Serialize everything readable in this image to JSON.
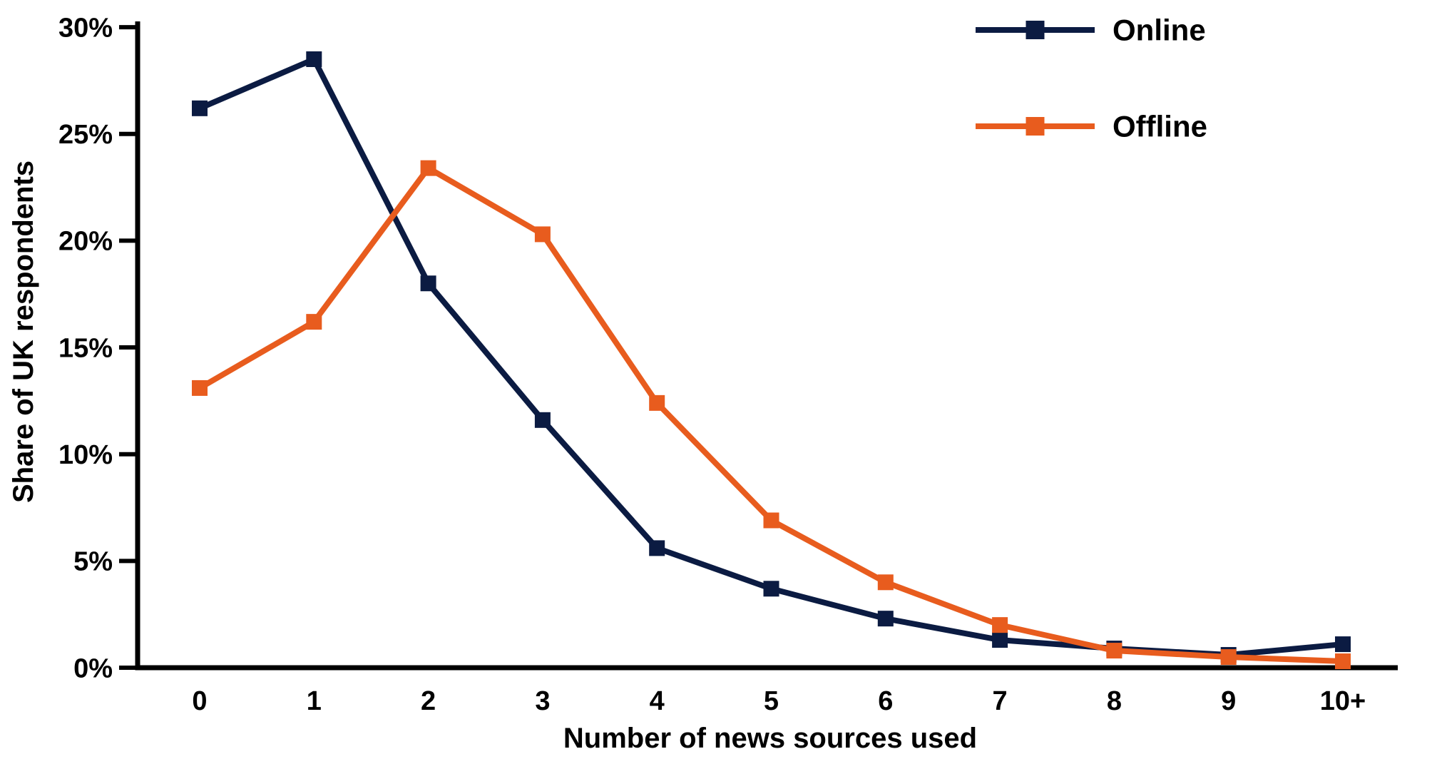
{
  "chart_data": {
    "type": "line",
    "title": "",
    "categories": [
      "0",
      "1",
      "2",
      "3",
      "4",
      "5",
      "6",
      "7",
      "8",
      "9",
      "10+"
    ],
    "series": [
      {
        "name": "Online",
        "color": "#0B1B42",
        "marker": "square",
        "values": [
          26.2,
          28.5,
          18.0,
          11.6,
          5.6,
          3.7,
          2.3,
          1.3,
          0.9,
          0.6,
          1.1
        ]
      },
      {
        "name": "Offline",
        "color": "#E85C1E",
        "marker": "square",
        "values": [
          13.1,
          16.2,
          23.4,
          20.3,
          12.4,
          6.9,
          4.0,
          2.0,
          0.8,
          0.5,
          0.3
        ]
      }
    ],
    "xlabel": "Number of news sources used",
    "ylabel": "Share of UK respondents",
    "y_ticks": [
      "0%",
      "5%",
      "10%",
      "15%",
      "20%",
      "25%",
      "30%"
    ],
    "y_tick_values": [
      0,
      5,
      10,
      15,
      20,
      25,
      30
    ],
    "ylim": [
      0,
      30
    ],
    "grid": false,
    "legend_position": "top-right",
    "axis_color": "#000000"
  }
}
